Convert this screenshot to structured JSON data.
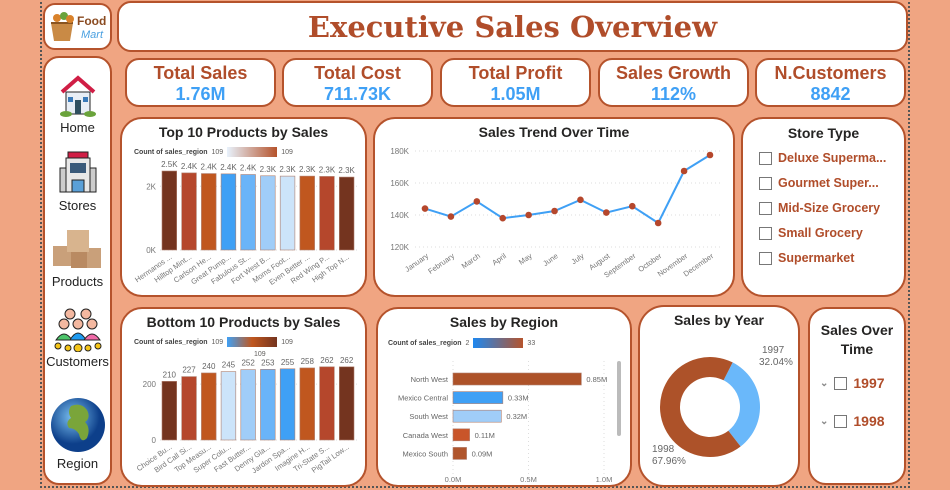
{
  "title": "Executive Sales Overview",
  "logo": {
    "text": "Food Mart"
  },
  "nav": [
    {
      "label": "Home",
      "icon": "house-icon"
    },
    {
      "label": "Stores",
      "icon": "store-building-icon"
    },
    {
      "label": "Products",
      "icon": "boxes-icon"
    },
    {
      "label": "Customers",
      "icon": "customers-icon"
    },
    {
      "label": "Region",
      "icon": "globe-icon"
    }
  ],
  "kpis": [
    {
      "label": "Total Sales",
      "value": "1.76M"
    },
    {
      "label": "Total Cost",
      "value": "711.73K"
    },
    {
      "label": "Total Profit",
      "value": "1.05M"
    },
    {
      "label": "Sales Growth",
      "value": "112%"
    },
    {
      "label": "N.Customers",
      "value": "8842"
    }
  ],
  "store_type": {
    "title": "Store Type",
    "items": [
      "Deluxe Superma...",
      "Gourmet Super...",
      "Mid-Size Grocery",
      "Small Grocery",
      "Supermarket"
    ]
  },
  "sales_over_time": {
    "title": "Sales Over Time",
    "items": [
      "1997",
      "1998"
    ]
  },
  "colors": {
    "accent": "#b04d2a",
    "blue": "#3fa0f5",
    "background": "#f0a582",
    "border": "#b5532c"
  },
  "chart_data": [
    {
      "type": "bar",
      "title": "Top 10 Products by Sales",
      "legend": {
        "label": "Count of sales_region",
        "min": "109",
        "max": "109"
      },
      "categories": [
        "Hermanos ...",
        "Hilltop Mint...",
        "Carlson He...",
        "Great Pump...",
        "Fabulous St...",
        "Fort West B...",
        "Moms Foot...",
        "Even Better ...",
        "Red Wing P...",
        "High Top N..."
      ],
      "values": [
        2480,
        2420,
        2400,
        2390,
        2370,
        2330,
        2320,
        2320,
        2310,
        2290
      ],
      "labels": [
        "2.5K",
        "2.4K",
        "2.4K",
        "2.4K",
        "2.4K",
        "2.3K",
        "2.3K",
        "2.3K",
        "2.3K",
        "2.3K"
      ],
      "yticks": [
        "0K",
        "2K"
      ],
      "ylim": [
        0,
        2700
      ],
      "colors": [
        "#74341f",
        "#b5472c",
        "#c0571f",
        "#3fa0f5",
        "#6ab4f8",
        "#a0cdf8",
        "#cce4fa",
        "#c0571f",
        "#b5472c",
        "#74341f"
      ]
    },
    {
      "type": "line",
      "title": "Sales Trend Over Time",
      "categories": [
        "January",
        "February",
        "March",
        "April",
        "May",
        "June",
        "July",
        "August",
        "September",
        "October",
        "November",
        "December"
      ],
      "values": [
        144000,
        139000,
        148500,
        138000,
        140000,
        142500,
        149500,
        141500,
        145500,
        135000,
        167500,
        177500
      ],
      "yticks": [
        "120K",
        "140K",
        "160K",
        "180K"
      ],
      "ylim": [
        120000,
        180000
      ]
    },
    {
      "type": "bar",
      "title": "Bottom 10 Products by Sales",
      "legend": {
        "label": "Count of sales_region",
        "min": "109",
        "max": "109",
        "mid": "109"
      },
      "categories": [
        "Choice Bu...",
        "Bird Call Si...",
        "Top Measu...",
        "Super Colu...",
        "Fast Butter...",
        "Denny Gla...",
        "Jardon Spa...",
        "Imagine H...",
        "Tri-State S...",
        "PigTail Low..."
      ],
      "values": [
        210,
        227,
        240,
        245,
        252,
        253,
        255,
        258,
        262,
        262
      ],
      "labels": [
        "210",
        "227",
        "240",
        "245",
        "252",
        "253",
        "255",
        "258",
        "262",
        "262"
      ],
      "yticks": [
        "0",
        "200"
      ],
      "ylim": [
        0,
        290
      ],
      "colors": [
        "#74341f",
        "#b5472c",
        "#c0571f",
        "#cce4fa",
        "#a0cdf8",
        "#6ab4f8",
        "#3fa0f5",
        "#c0571f",
        "#b5472c",
        "#74341f"
      ]
    },
    {
      "type": "bar",
      "orientation": "horizontal",
      "title": "Sales by Region",
      "legend": {
        "label": "Count of sales_region",
        "min": "2",
        "max": "33"
      },
      "categories": [
        "North West",
        "Mexico Central",
        "South West",
        "Canada West",
        "Mexico South"
      ],
      "values": [
        0.85,
        0.33,
        0.32,
        0.11,
        0.09
      ],
      "labels": [
        "0.85M",
        "0.33M",
        "0.32M",
        "0.11M",
        "0.09M"
      ],
      "xticks": [
        "0.0M",
        "0.5M",
        "1.0M"
      ],
      "xlim": [
        0,
        1.0
      ],
      "colors": [
        "#ad5229",
        "#3fa0f5",
        "#a0cdf8",
        "#c9552a",
        "#b0552c"
      ]
    },
    {
      "type": "pie",
      "donut": true,
      "title": "Sales by Year",
      "categories": [
        "1997",
        "1998"
      ],
      "values": [
        32.04,
        67.96
      ],
      "labels": [
        "32.04%",
        "67.96%"
      ],
      "colors": [
        "#6ab8fa",
        "#ad5229"
      ]
    }
  ]
}
